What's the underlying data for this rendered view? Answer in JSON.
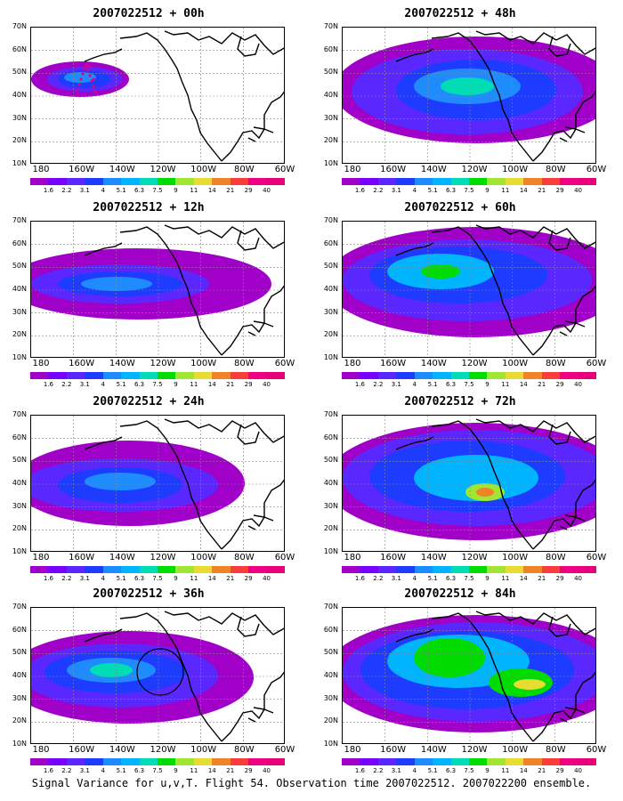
{
  "panels": [
    {
      "title": "2007022512 + 00h",
      "id": "00h"
    },
    {
      "title": "2007022512 + 48h",
      "id": "48h"
    },
    {
      "title": "2007022512 + 12h",
      "id": "12h"
    },
    {
      "title": "2007022512 + 60h",
      "id": "60h"
    },
    {
      "title": "2007022512 + 24h",
      "id": "24h"
    },
    {
      "title": "2007022512 + 72h",
      "id": "72h"
    },
    {
      "title": "2007022512 + 36h",
      "id": "36h"
    },
    {
      "title": "2007022512 + 84h",
      "id": "84h"
    }
  ],
  "axes": {
    "lat_labels": [
      "70N",
      "60N",
      "50N",
      "40N",
      "30N",
      "20N",
      "10N"
    ],
    "lon_labels": [
      "180",
      "160W",
      "140W",
      "120W",
      "100W",
      "80W",
      "60W"
    ]
  },
  "colorbar": {
    "labels": [
      "1.6",
      "2.2",
      "3.1",
      "4",
      "5.1",
      "6.3",
      "7.5",
      "9",
      "11",
      "14",
      "21",
      "29",
      "40"
    ],
    "colors": [
      "#a000c8",
      "#7800ff",
      "#5a28ff",
      "#1e3cff",
      "#1e8cff",
      "#00b4ff",
      "#00dcb4",
      "#00dc00",
      "#a0e632",
      "#e6dc32",
      "#f08228",
      "#fa3c3c",
      "#f00082",
      "#e8007a"
    ]
  },
  "caption": "Signal Variance for u,v,T. Flight 54. Observation time 2007022512. 2007022200 ensemble."
}
